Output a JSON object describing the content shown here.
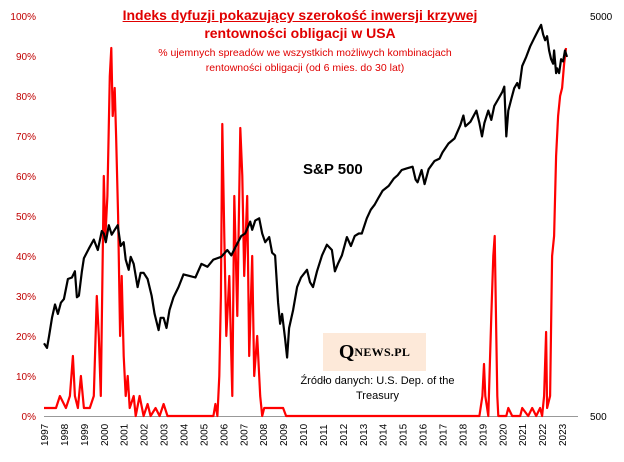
{
  "header": {
    "title_line1": "Indeks dyfuzji pokazujący szerokość inwersji krzywej",
    "title_line2": "rentowności obligacji w USA",
    "subtitle_line1": "% ujemnych spreadów we wszystkich możliwych kombinacjach",
    "subtitle_line2": "rentowności obligacji (od 6 mies. do 30 lat)"
  },
  "sp_label": "S&P 500",
  "logo": {
    "q": "Q",
    "rest": "NEWS.PL"
  },
  "source": {
    "line1": "Źródło danych: U.S. Dep. of the",
    "line2": "Treasury"
  },
  "colors": {
    "diffusion": "#ff0000",
    "sp500": "#000000",
    "axis_left": "#c00000"
  },
  "chart_data": {
    "type": "line",
    "title": "Indeks dyfuzji pokazujący szerokość inwersji krzywej rentowności obligacji w USA",
    "x_range": [
      1997,
      2023.8
    ],
    "x_ticks": [
      "1997",
      "1998",
      "1999",
      "2000",
      "2001",
      "2002",
      "2003",
      "2004",
      "2005",
      "2006",
      "2007",
      "2008",
      "2009",
      "2010",
      "2011",
      "2012",
      "2013",
      "2014",
      "2015",
      "2016",
      "2017",
      "2018",
      "2019",
      "2020",
      "2021",
      "2022",
      "2023"
    ],
    "y_left": {
      "ylim": [
        0,
        100
      ],
      "ticks": [
        "0%",
        "10%",
        "20%",
        "30%",
        "40%",
        "50%",
        "60%",
        "70%",
        "80%",
        "90%",
        "100%"
      ]
    },
    "y_right": {
      "scale": "log",
      "ylim": [
        500,
        5000
      ],
      "ticks": [
        "500",
        "5000"
      ]
    },
    "series": [
      {
        "name": "Indeks dyfuzji (%)",
        "axis": "left",
        "points": [
          [
            1997.0,
            2
          ],
          [
            1997.6,
            2
          ],
          [
            1997.8,
            5
          ],
          [
            1998.1,
            2
          ],
          [
            1998.3,
            5
          ],
          [
            1998.45,
            15
          ],
          [
            1998.55,
            5
          ],
          [
            1998.7,
            2
          ],
          [
            1998.85,
            10
          ],
          [
            1999.0,
            2
          ],
          [
            1999.3,
            2
          ],
          [
            1999.5,
            5
          ],
          [
            1999.65,
            30
          ],
          [
            1999.75,
            20
          ],
          [
            1999.85,
            5
          ],
          [
            2000.0,
            60
          ],
          [
            2000.08,
            45
          ],
          [
            2000.18,
            55
          ],
          [
            2000.3,
            85
          ],
          [
            2000.38,
            92
          ],
          [
            2000.45,
            75
          ],
          [
            2000.55,
            82
          ],
          [
            2000.62,
            70
          ],
          [
            2000.72,
            50
          ],
          [
            2000.82,
            20
          ],
          [
            2000.9,
            35
          ],
          [
            2001.0,
            15
          ],
          [
            2001.1,
            5
          ],
          [
            2001.2,
            10
          ],
          [
            2001.3,
            2
          ],
          [
            2001.5,
            5
          ],
          [
            2001.6,
            0
          ],
          [
            2001.8,
            5
          ],
          [
            2002.0,
            0
          ],
          [
            2002.2,
            3
          ],
          [
            2002.35,
            0
          ],
          [
            2002.6,
            2
          ],
          [
            2002.8,
            0
          ],
          [
            2003.0,
            3
          ],
          [
            2003.2,
            0
          ],
          [
            2004.0,
            0
          ],
          [
            2005.0,
            0
          ],
          [
            2005.5,
            0
          ],
          [
            2005.6,
            3
          ],
          [
            2005.7,
            0
          ],
          [
            2005.8,
            10
          ],
          [
            2005.88,
            30
          ],
          [
            2005.95,
            73
          ],
          [
            2006.05,
            45
          ],
          [
            2006.15,
            20
          ],
          [
            2006.3,
            35
          ],
          [
            2006.45,
            5
          ],
          [
            2006.55,
            55
          ],
          [
            2006.7,
            25
          ],
          [
            2006.85,
            72
          ],
          [
            2006.95,
            60
          ],
          [
            2007.05,
            35
          ],
          [
            2007.2,
            55
          ],
          [
            2007.3,
            15
          ],
          [
            2007.45,
            40
          ],
          [
            2007.55,
            10
          ],
          [
            2007.7,
            20
          ],
          [
            2007.85,
            5
          ],
          [
            2007.95,
            0
          ],
          [
            2008.05,
            2
          ],
          [
            2009.0,
            2
          ],
          [
            2009.15,
            0
          ],
          [
            2018.0,
            0
          ],
          [
            2018.85,
            0
          ],
          [
            2019.0,
            5
          ],
          [
            2019.08,
            13
          ],
          [
            2019.15,
            5
          ],
          [
            2019.3,
            0
          ],
          [
            2019.45,
            25
          ],
          [
            2019.55,
            40
          ],
          [
            2019.62,
            45
          ],
          [
            2019.7,
            20
          ],
          [
            2019.75,
            5
          ],
          [
            2019.8,
            0
          ],
          [
            2020.2,
            0
          ],
          [
            2020.3,
            2
          ],
          [
            2020.5,
            0
          ],
          [
            2020.9,
            0
          ],
          [
            2021.0,
            2
          ],
          [
            2021.3,
            0
          ],
          [
            2021.5,
            2
          ],
          [
            2021.7,
            0
          ],
          [
            2021.9,
            2
          ],
          [
            2022.0,
            0
          ],
          [
            2022.1,
            5
          ],
          [
            2022.2,
            21
          ],
          [
            2022.25,
            2
          ],
          [
            2022.4,
            5
          ],
          [
            2022.5,
            40
          ],
          [
            2022.6,
            45
          ],
          [
            2022.7,
            65
          ],
          [
            2022.8,
            75
          ],
          [
            2022.9,
            80
          ],
          [
            2023.0,
            82
          ],
          [
            2023.1,
            88
          ],
          [
            2023.2,
            92
          ]
        ]
      },
      {
        "name": "S&P 500",
        "axis": "right",
        "points": [
          [
            1997.0,
            760
          ],
          [
            1997.15,
            740
          ],
          [
            1997.25,
            790
          ],
          [
            1997.4,
            880
          ],
          [
            1997.55,
            950
          ],
          [
            1997.7,
            900
          ],
          [
            1997.85,
            960
          ],
          [
            1998.0,
            980
          ],
          [
            1998.2,
            1100
          ],
          [
            1998.4,
            1110
          ],
          [
            1998.55,
            1150
          ],
          [
            1998.65,
            990
          ],
          [
            1998.75,
            1000
          ],
          [
            1998.9,
            1150
          ],
          [
            1999.0,
            1240
          ],
          [
            1999.25,
            1310
          ],
          [
            1999.5,
            1380
          ],
          [
            1999.7,
            1300
          ],
          [
            1999.9,
            1450
          ],
          [
            2000.0,
            1430
          ],
          [
            2000.1,
            1360
          ],
          [
            2000.25,
            1500
          ],
          [
            2000.4,
            1420
          ],
          [
            2000.55,
            1460
          ],
          [
            2000.7,
            1500
          ],
          [
            2000.85,
            1330
          ],
          [
            2001.0,
            1360
          ],
          [
            2001.1,
            1230
          ],
          [
            2001.25,
            1160
          ],
          [
            2001.35,
            1250
          ],
          [
            2001.5,
            1200
          ],
          [
            2001.7,
            1050
          ],
          [
            2001.85,
            1140
          ],
          [
            2002.0,
            1140
          ],
          [
            2002.2,
            1100
          ],
          [
            2002.4,
            1000
          ],
          [
            2002.55,
            900
          ],
          [
            2002.75,
            820
          ],
          [
            2002.85,
            880
          ],
          [
            2003.0,
            880
          ],
          [
            2003.15,
            830
          ],
          [
            2003.3,
            920
          ],
          [
            2003.5,
            990
          ],
          [
            2003.75,
            1050
          ],
          [
            2004.0,
            1130
          ],
          [
            2004.3,
            1120
          ],
          [
            2004.6,
            1110
          ],
          [
            2004.9,
            1200
          ],
          [
            2005.2,
            1180
          ],
          [
            2005.5,
            1230
          ],
          [
            2005.9,
            1250
          ],
          [
            2006.2,
            1300
          ],
          [
            2006.4,
            1260
          ],
          [
            2006.6,
            1320
          ],
          [
            2006.9,
            1410
          ],
          [
            2007.1,
            1430
          ],
          [
            2007.35,
            1530
          ],
          [
            2007.45,
            1460
          ],
          [
            2007.6,
            1540
          ],
          [
            2007.8,
            1560
          ],
          [
            2007.95,
            1430
          ],
          [
            2008.1,
            1360
          ],
          [
            2008.3,
            1400
          ],
          [
            2008.45,
            1280
          ],
          [
            2008.6,
            1260
          ],
          [
            2008.75,
            960
          ],
          [
            2008.85,
            850
          ],
          [
            2008.95,
            900
          ],
          [
            2009.1,
            780
          ],
          [
            2009.2,
            700
          ],
          [
            2009.3,
            830
          ],
          [
            2009.5,
            920
          ],
          [
            2009.7,
            1050
          ],
          [
            2009.9,
            1110
          ],
          [
            2010.2,
            1160
          ],
          [
            2010.35,
            1080
          ],
          [
            2010.5,
            1050
          ],
          [
            2010.7,
            1150
          ],
          [
            2010.95,
            1260
          ],
          [
            2011.2,
            1340
          ],
          [
            2011.45,
            1300
          ],
          [
            2011.6,
            1150
          ],
          [
            2011.75,
            1200
          ],
          [
            2011.95,
            1260
          ],
          [
            2012.2,
            1400
          ],
          [
            2012.4,
            1330
          ],
          [
            2012.6,
            1410
          ],
          [
            2012.8,
            1430
          ],
          [
            2012.95,
            1430
          ],
          [
            2013.2,
            1560
          ],
          [
            2013.4,
            1640
          ],
          [
            2013.6,
            1690
          ],
          [
            2013.8,
            1760
          ],
          [
            2014.0,
            1830
          ],
          [
            2014.3,
            1880
          ],
          [
            2014.55,
            1960
          ],
          [
            2014.75,
            2000
          ],
          [
            2014.95,
            2060
          ],
          [
            2015.2,
            2080
          ],
          [
            2015.5,
            2100
          ],
          [
            2015.65,
            1950
          ],
          [
            2015.75,
            1920
          ],
          [
            2015.95,
            2060
          ],
          [
            2016.1,
            1900
          ],
          [
            2016.3,
            2070
          ],
          [
            2016.6,
            2170
          ],
          [
            2016.85,
            2200
          ],
          [
            2017.0,
            2280
          ],
          [
            2017.3,
            2400
          ],
          [
            2017.6,
            2470
          ],
          [
            2017.9,
            2670
          ],
          [
            2018.05,
            2820
          ],
          [
            2018.15,
            2650
          ],
          [
            2018.4,
            2720
          ],
          [
            2018.7,
            2900
          ],
          [
            2018.85,
            2700
          ],
          [
            2018.98,
            2500
          ],
          [
            2019.1,
            2700
          ],
          [
            2019.3,
            2900
          ],
          [
            2019.45,
            2750
          ],
          [
            2019.6,
            2980
          ],
          [
            2019.8,
            3100
          ],
          [
            2020.0,
            3230
          ],
          [
            2020.1,
            3330
          ],
          [
            2020.2,
            2500
          ],
          [
            2020.3,
            2900
          ],
          [
            2020.45,
            3100
          ],
          [
            2020.6,
            3300
          ],
          [
            2020.75,
            3400
          ],
          [
            2020.85,
            3300
          ],
          [
            2021.0,
            3750
          ],
          [
            2021.2,
            3950
          ],
          [
            2021.4,
            4200
          ],
          [
            2021.6,
            4400
          ],
          [
            2021.8,
            4600
          ],
          [
            2021.95,
            4750
          ],
          [
            2022.05,
            4500
          ],
          [
            2022.15,
            4350
          ],
          [
            2022.25,
            4450
          ],
          [
            2022.35,
            4100
          ],
          [
            2022.45,
            3900
          ],
          [
            2022.55,
            3800
          ],
          [
            2022.6,
            4100
          ],
          [
            2022.7,
            3600
          ],
          [
            2022.75,
            3700
          ],
          [
            2022.85,
            3600
          ],
          [
            2022.95,
            3900
          ],
          [
            2023.05,
            3850
          ],
          [
            2023.15,
            4100
          ],
          [
            2023.25,
            3950
          ]
        ]
      }
    ]
  }
}
